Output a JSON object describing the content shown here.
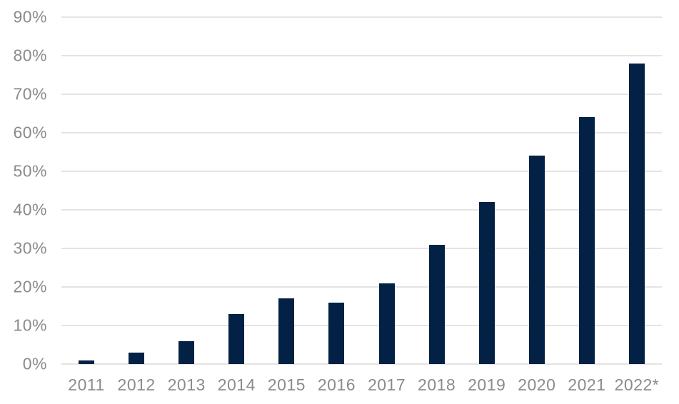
{
  "chart_data": {
    "type": "bar",
    "categories": [
      "2011",
      "2012",
      "2013",
      "2014",
      "2015",
      "2016",
      "2017",
      "2018",
      "2019",
      "2020",
      "2021",
      "2022*"
    ],
    "values": [
      1,
      3,
      6,
      13,
      17,
      16,
      21,
      31,
      42,
      54,
      64,
      78
    ],
    "unit": "%",
    "title": "",
    "xlabel": "",
    "ylabel": "",
    "ylim": [
      0,
      90
    ],
    "ytick_step": 10,
    "ytick_labels": [
      "0%",
      "10%",
      "20%",
      "30%",
      "40%",
      "50%",
      "60%",
      "70%",
      "80%",
      "90%"
    ],
    "grid": true,
    "legend_position": "none",
    "colors": {
      "bar": "#032144",
      "gridline": "#e4e4e4",
      "tick_label": "#8b8b8b",
      "background": "#ffffff"
    }
  }
}
